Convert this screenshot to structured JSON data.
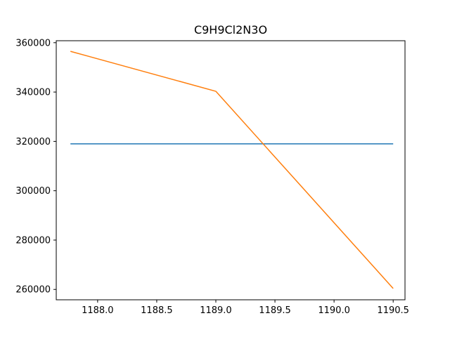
{
  "chart_data": {
    "type": "line",
    "title": "C9H9Cl2N3O",
    "xlabel": "",
    "ylabel": "",
    "xlim": [
      1187.65,
      1190.6
    ],
    "ylim": [
      255800,
      360800
    ],
    "xticks": [
      1188.0,
      1188.5,
      1189.0,
      1189.5,
      1190.0,
      1190.5
    ],
    "xtick_labels": [
      "1188.0",
      "1188.5",
      "1189.0",
      "1189.5",
      "1190.0",
      "1190.5"
    ],
    "yticks": [
      260000,
      280000,
      300000,
      320000,
      340000,
      360000
    ],
    "ytick_labels": [
      "260000",
      "280000",
      "300000",
      "320000",
      "340000",
      "360000"
    ],
    "grid": false,
    "series": [
      {
        "color": "#1f77b4",
        "x": [
          1187.77,
          1190.5
        ],
        "y": [
          319000,
          319000
        ]
      },
      {
        "color": "#ff7f0e",
        "x": [
          1187.77,
          1189.0,
          1190.5
        ],
        "y": [
          356500,
          340300,
          260400
        ]
      }
    ]
  }
}
